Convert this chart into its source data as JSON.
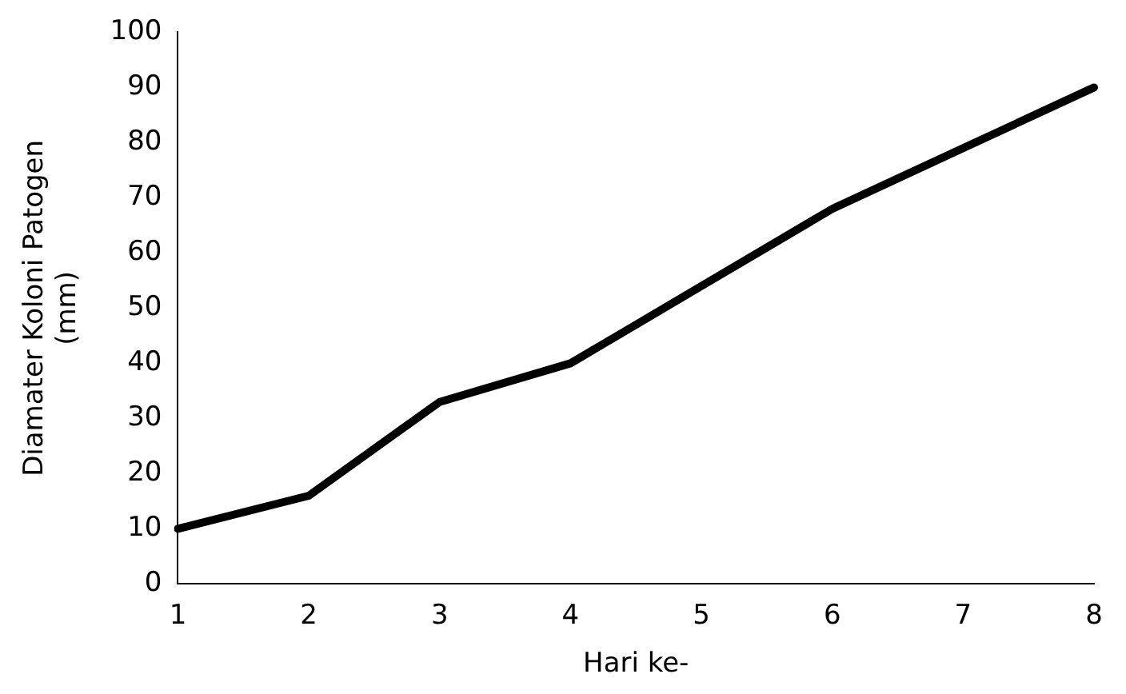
{
  "chart_data": {
    "type": "line",
    "xlabel": "Hari ke-",
    "ylabel": "Diamater Koloni Patogen (mm)",
    "categories": [
      "1",
      "2",
      "3",
      "4",
      "5",
      "6",
      "7",
      "8"
    ],
    "series": [
      {
        "color": "#000000",
        "values": [
          10,
          16,
          33,
          40,
          54,
          68,
          79,
          90
        ]
      }
    ],
    "ylim": [
      0,
      100
    ],
    "yticks": [
      0,
      10,
      20,
      30,
      40,
      50,
      60,
      70,
      80,
      90,
      100
    ],
    "grid": false,
    "legend": false,
    "marker": "none",
    "line_style": "solid"
  }
}
